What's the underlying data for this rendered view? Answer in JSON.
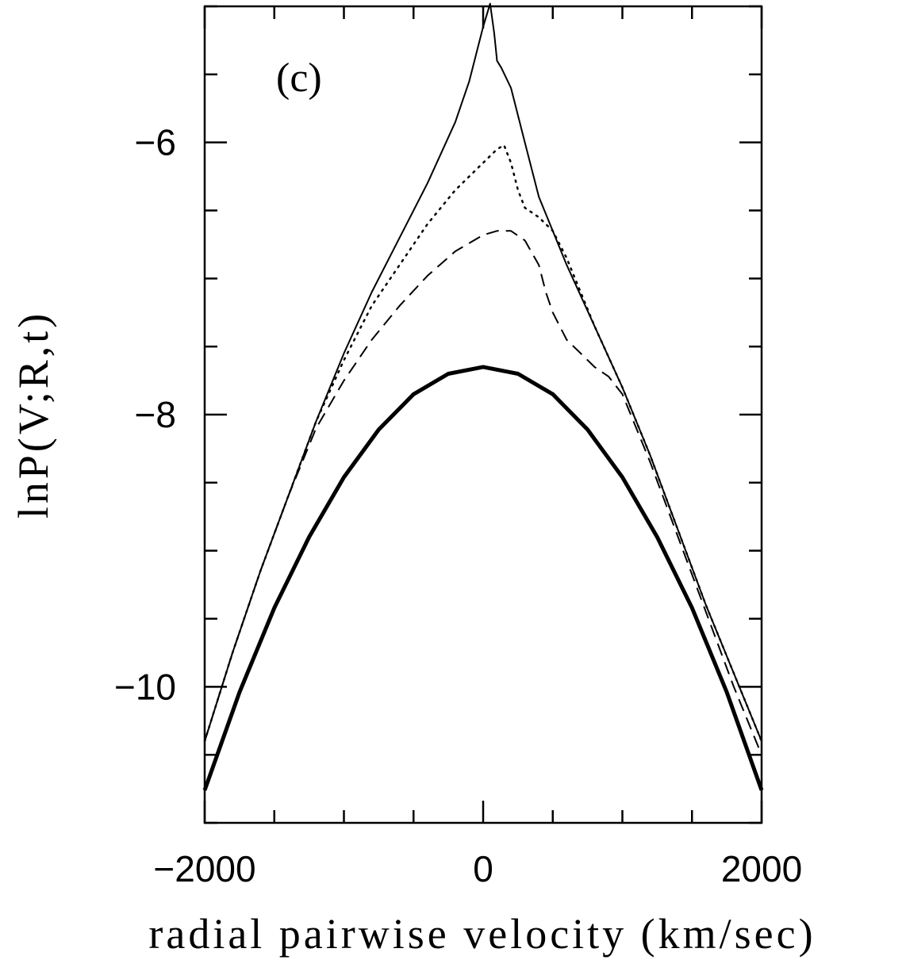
{
  "chart_data": {
    "type": "line",
    "title": "",
    "annotation": "(c)",
    "xlabel": "radial pairwise velocity (km/sec)",
    "ylabel": "lnP(V;R,t)",
    "xlim": [
      -2000,
      2000
    ],
    "ylim": [
      -11,
      -5
    ],
    "xticks": [
      -2000,
      0,
      2000
    ],
    "yticks": [
      -10,
      -8,
      -6
    ],
    "xtick_labels": [
      "−2000",
      "0",
      "2000"
    ],
    "ytick_labels": [
      "−10",
      "−8",
      "−6"
    ],
    "grid": false,
    "legend": "none",
    "series": [
      {
        "style": "solid-thick",
        "x": [
          -2000,
          -1750,
          -1500,
          -1250,
          -1000,
          -750,
          -500,
          -250,
          0,
          250,
          500,
          750,
          1000,
          1250,
          1500,
          1750,
          2000
        ],
        "y": [
          -10.76,
          -10.04,
          -9.42,
          -8.9,
          -8.46,
          -8.11,
          -7.85,
          -7.7,
          -7.65,
          -7.7,
          -7.85,
          -8.11,
          -8.46,
          -8.9,
          -9.42,
          -10.04,
          -10.76
        ]
      },
      {
        "style": "solid",
        "x": [
          -2000,
          -1800,
          -1600,
          -1400,
          -1200,
          -1000,
          -800,
          -600,
          -400,
          -200,
          -100,
          0,
          50,
          80,
          100,
          130,
          200,
          300,
          400,
          600,
          800,
          1000,
          1200,
          1400,
          1600,
          1800,
          2000
        ],
        "y": [
          -10.4,
          -9.75,
          -9.15,
          -8.6,
          -8.05,
          -7.55,
          -7.1,
          -6.7,
          -6.3,
          -5.85,
          -5.55,
          -5.15,
          -4.98,
          -5.2,
          -5.4,
          -5.45,
          -5.6,
          -6.0,
          -6.4,
          -6.9,
          -7.35,
          -7.8,
          -8.3,
          -8.85,
          -9.4,
          -9.9,
          -10.4
        ]
      },
      {
        "style": "dotted",
        "x": [
          -2000,
          -1800,
          -1600,
          -1400,
          -1200,
          -1000,
          -800,
          -600,
          -400,
          -200,
          0,
          100,
          150,
          200,
          250,
          300,
          400,
          500,
          600,
          800,
          1000,
          1200,
          1400,
          1600,
          1800,
          2000
        ],
        "y": [
          -10.4,
          -9.75,
          -9.15,
          -8.6,
          -8.05,
          -7.6,
          -7.2,
          -6.9,
          -6.6,
          -6.35,
          -6.15,
          -6.05,
          -6.02,
          -6.15,
          -6.35,
          -6.48,
          -6.55,
          -6.65,
          -6.85,
          -7.35,
          -7.8,
          -8.3,
          -8.85,
          -9.4,
          -9.9,
          -10.4
        ]
      },
      {
        "style": "dashed",
        "x": [
          -2000,
          -1800,
          -1600,
          -1400,
          -1200,
          -1000,
          -800,
          -600,
          -400,
          -200,
          0,
          100,
          200,
          300,
          400,
          450,
          500,
          600,
          700,
          800,
          900,
          1000,
          1200,
          1400,
          1600,
          1800,
          2000
        ],
        "y": [
          -10.4,
          -9.75,
          -9.15,
          -8.6,
          -8.1,
          -7.75,
          -7.45,
          -7.2,
          -6.98,
          -6.8,
          -6.68,
          -6.65,
          -6.65,
          -6.72,
          -6.9,
          -7.1,
          -7.25,
          -7.45,
          -7.55,
          -7.65,
          -7.72,
          -7.85,
          -8.35,
          -8.9,
          -9.45,
          -10.0,
          -10.5
        ]
      }
    ]
  }
}
